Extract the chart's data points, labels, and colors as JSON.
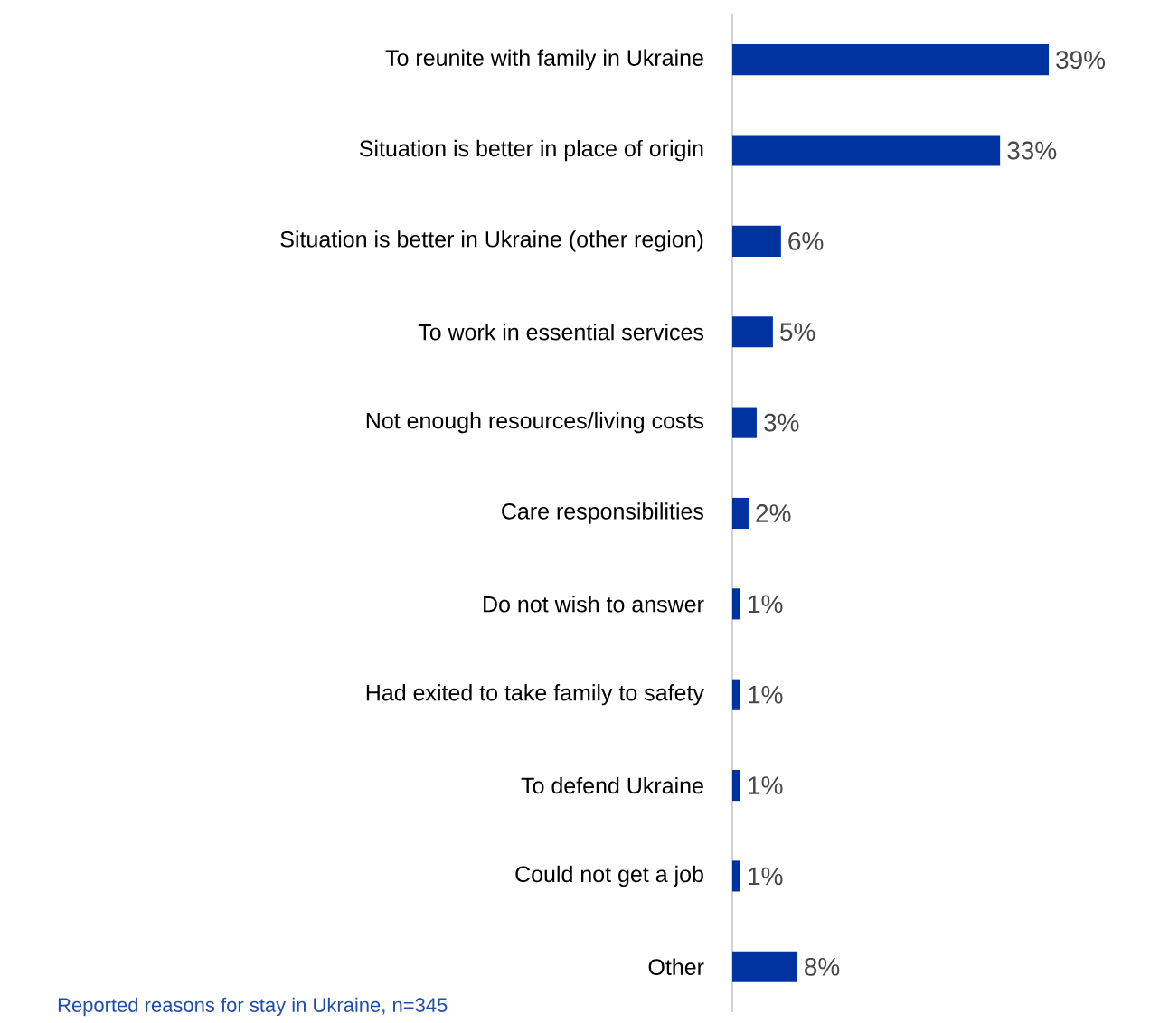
{
  "chart_data": {
    "type": "bar",
    "orientation": "horizontal",
    "categories": [
      "To reunite with family in Ukraine",
      "Situation is better in place of origin",
      "Situation is better in Ukraine (other region)",
      "To work in essential services",
      "Not enough resources/living costs",
      "Care responsibilities",
      "Do not wish to answer",
      "Had exited to take family to safety",
      "To defend Ukraine",
      "Could not get a job",
      "Other"
    ],
    "values": [
      39,
      33,
      6,
      5,
      3,
      2,
      1,
      1,
      1,
      1,
      8
    ],
    "value_labels": [
      "39%",
      "33%",
      "6%",
      "5%",
      "3%",
      "2%",
      "1%",
      "1%",
      "1%",
      "1%",
      "8%"
    ],
    "color": "#0033a0",
    "annotations": [
      "Reported reasons for stay in Ukraine, n=345"
    ]
  }
}
